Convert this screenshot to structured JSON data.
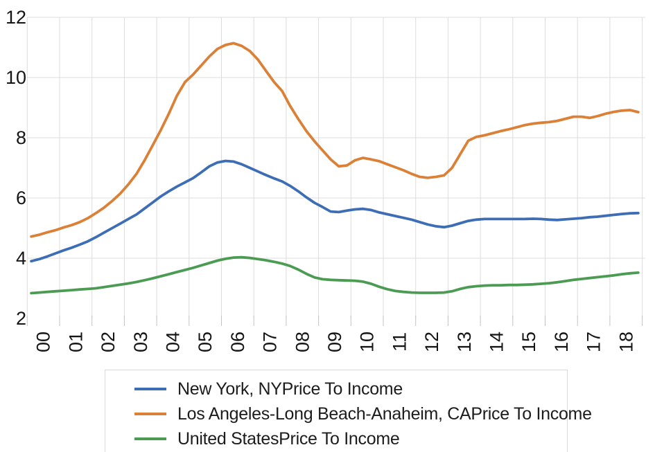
{
  "chart": {
    "y_axis": {
      "tick_labels": [
        "12",
        "10",
        "8",
        "6",
        "4",
        "2"
      ],
      "tick_values": [
        12,
        10,
        8,
        6,
        4,
        2
      ]
    },
    "x_axis": {
      "labels": [
        "00",
        "01",
        "02",
        "03",
        "04",
        "05",
        "06",
        "07",
        "08",
        "09",
        "10",
        "11",
        "12",
        "13",
        "14",
        "15",
        "16",
        "17",
        "18"
      ]
    },
    "colors": {
      "grid": "#dcdcdc",
      "tick": "#c3c3c3",
      "text": "#151515"
    }
  },
  "chart_data": {
    "type": "line",
    "title": "",
    "xlabel": "",
    "ylabel": "",
    "x_unit": "quarterly",
    "x_start_year": 2000,
    "x_end_year": 2018,
    "categories": [
      "00",
      "01",
      "02",
      "03",
      "04",
      "05",
      "06",
      "07",
      "08",
      "09",
      "10",
      "11",
      "12",
      "13",
      "14",
      "15",
      "16",
      "17",
      "18"
    ],
    "ylim": [
      2,
      12
    ],
    "y_ticks": [
      2,
      4,
      6,
      8,
      10,
      12
    ],
    "grid": true,
    "legend_position": "bottom",
    "series": [
      {
        "name": "New York, NYPrice To Income",
        "color": "#3d6eb5",
        "values": [
          3.9,
          3.97,
          4.06,
          4.16,
          4.26,
          4.35,
          4.45,
          4.56,
          4.7,
          4.85,
          5.0,
          5.15,
          5.3,
          5.45,
          5.65,
          5.85,
          6.05,
          6.22,
          6.38,
          6.52,
          6.66,
          6.85,
          7.05,
          7.18,
          7.23,
          7.21,
          7.12,
          7.0,
          6.88,
          6.76,
          6.65,
          6.55,
          6.4,
          6.22,
          6.02,
          5.84,
          5.7,
          5.55,
          5.53,
          5.58,
          5.62,
          5.64,
          5.6,
          5.52,
          5.46,
          5.4,
          5.34,
          5.28,
          5.2,
          5.12,
          5.06,
          5.03,
          5.08,
          5.16,
          5.24,
          5.28,
          5.3,
          5.3,
          5.3,
          5.3,
          5.3,
          5.3,
          5.31,
          5.3,
          5.28,
          5.27,
          5.29,
          5.31,
          5.33,
          5.36,
          5.38,
          5.41,
          5.44,
          5.47,
          5.49,
          5.5
        ]
      },
      {
        "name": "Los Angeles-Long Beach-Anaheim, CAPrice To Income",
        "color": "#da8137",
        "values": [
          4.72,
          4.78,
          4.86,
          4.93,
          5.02,
          5.1,
          5.2,
          5.33,
          5.5,
          5.68,
          5.9,
          6.15,
          6.45,
          6.8,
          7.25,
          7.75,
          8.25,
          8.8,
          9.4,
          9.85,
          10.1,
          10.4,
          10.7,
          10.95,
          11.08,
          11.14,
          11.05,
          10.88,
          10.6,
          10.22,
          9.85,
          9.55,
          9.05,
          8.62,
          8.22,
          7.88,
          7.58,
          7.28,
          7.05,
          7.08,
          7.25,
          7.33,
          7.28,
          7.22,
          7.12,
          7.02,
          6.92,
          6.8,
          6.7,
          6.67,
          6.7,
          6.75,
          7.0,
          7.45,
          7.9,
          8.03,
          8.08,
          8.15,
          8.22,
          8.28,
          8.35,
          8.42,
          8.47,
          8.5,
          8.52,
          8.56,
          8.63,
          8.7,
          8.7,
          8.66,
          8.72,
          8.8,
          8.86,
          8.9,
          8.92,
          8.85
        ]
      },
      {
        "name": "United StatesPrice To Income",
        "color": "#4b9b52",
        "values": [
          2.84,
          2.86,
          2.88,
          2.9,
          2.92,
          2.94,
          2.96,
          2.98,
          3.0,
          3.04,
          3.08,
          3.12,
          3.16,
          3.21,
          3.27,
          3.33,
          3.4,
          3.47,
          3.54,
          3.61,
          3.68,
          3.76,
          3.84,
          3.92,
          3.98,
          4.02,
          4.03,
          4.01,
          3.97,
          3.93,
          3.88,
          3.82,
          3.74,
          3.62,
          3.48,
          3.36,
          3.3,
          3.28,
          3.27,
          3.26,
          3.25,
          3.22,
          3.15,
          3.05,
          2.97,
          2.91,
          2.88,
          2.86,
          2.85,
          2.85,
          2.85,
          2.86,
          2.9,
          2.98,
          3.04,
          3.07,
          3.09,
          3.1,
          3.1,
          3.11,
          3.11,
          3.12,
          3.13,
          3.15,
          3.17,
          3.2,
          3.24,
          3.28,
          3.31,
          3.34,
          3.37,
          3.4,
          3.43,
          3.47,
          3.5,
          3.52
        ]
      }
    ]
  }
}
